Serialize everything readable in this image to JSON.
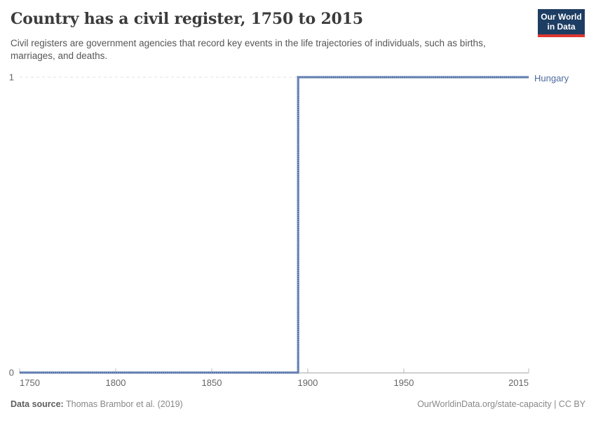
{
  "header": {
    "title": "Country has a civil register, 1750 to 2015",
    "subtitle": "Civil registers are government agencies that record key events in the life trajectories of individuals, such as births, marriages, and deaths.",
    "logo": {
      "line1": "Our World",
      "line2": "in Data"
    }
  },
  "chart_data": {
    "type": "line",
    "subtype": "step",
    "title": "Country has a civil register, 1750 to 2015",
    "xlim": [
      1750,
      2015
    ],
    "ylim": [
      0,
      1
    ],
    "x_ticks": [
      1750,
      1800,
      1850,
      1900,
      1950,
      2015
    ],
    "y_ticks": [
      0,
      1
    ],
    "grid": "horizontal-dashed-at-1",
    "legend_position": "right-of-line-end",
    "series": [
      {
        "name": "Hungary",
        "color": "#4c6a9c",
        "color_light": "#8ba1c7",
        "color_dark": "#44639e",
        "step_year": 1895,
        "points": [
          [
            1750,
            0
          ],
          [
            1895,
            0
          ],
          [
            1895,
            1
          ],
          [
            2015,
            1
          ]
        ]
      }
    ]
  },
  "footer": {
    "source_label": "Data source:",
    "source_value": " Thomas Brambor et al. (2019)",
    "link_text": "OurWorldinData.org/state-capacity | CC BY"
  },
  "colors": {
    "accent_blue": "#4c6a9c",
    "grid": "#e2e2e2",
    "axis": "#a8a8a8",
    "tick": "#bbbbbb",
    "tick_text": "#666666",
    "logo_navy": "#1d3d63",
    "logo_red": "#dd3730"
  }
}
